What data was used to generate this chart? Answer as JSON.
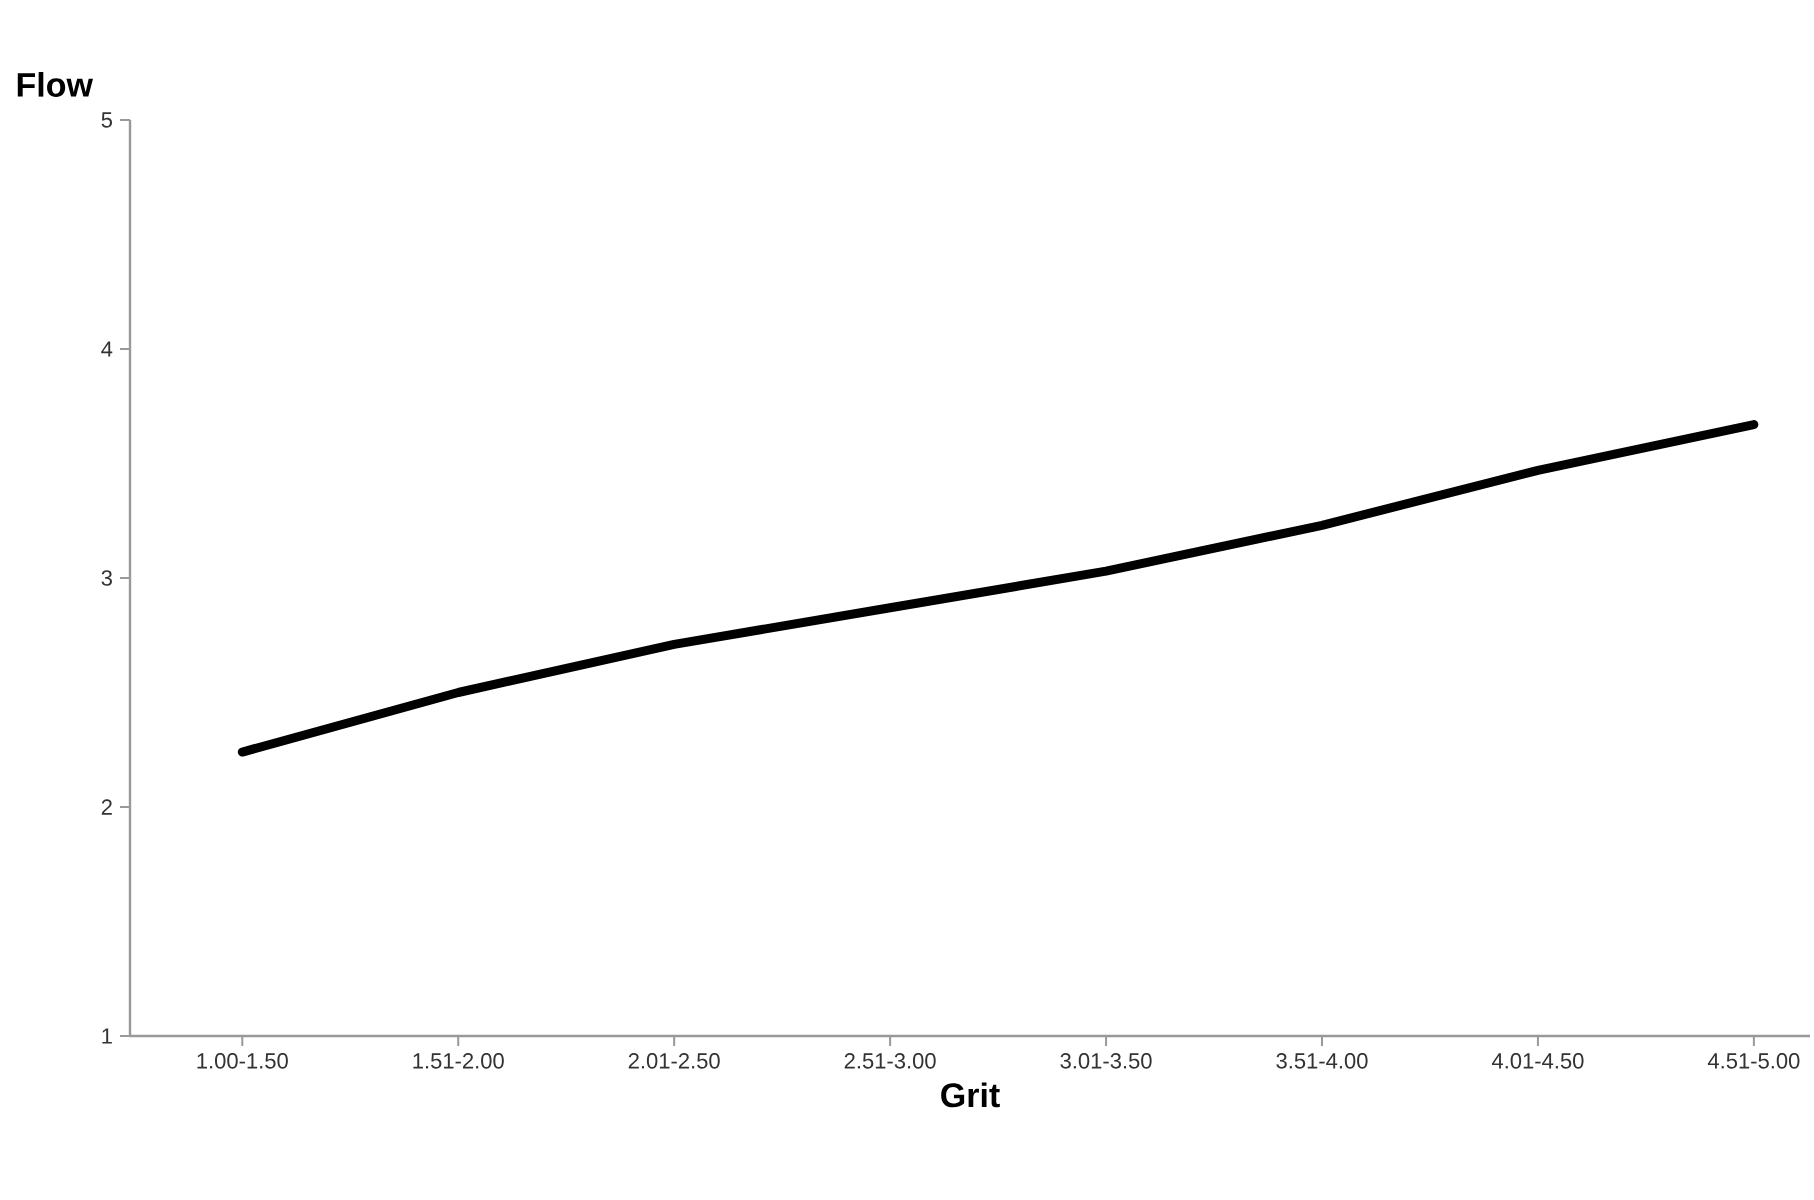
{
  "chart_data": {
    "type": "line",
    "xlabel": "Grit",
    "ylabel": "Flow",
    "categories": [
      "1.00-1.50",
      "1.51-2.00",
      "2.01-2.50",
      "2.51-3.00",
      "3.01-3.50",
      "3.51-4.00",
      "4.01-4.50",
      "4.51-5.00"
    ],
    "series": [
      {
        "color": "#000000",
        "values": [
          2.24,
          2.5,
          2.71,
          2.87,
          3.03,
          3.23,
          3.47,
          3.67
        ]
      }
    ],
    "ylim": [
      1,
      5
    ],
    "yticks": [
      1,
      2,
      3,
      4,
      5
    ],
    "marker": "none",
    "line_style": "solid"
  }
}
